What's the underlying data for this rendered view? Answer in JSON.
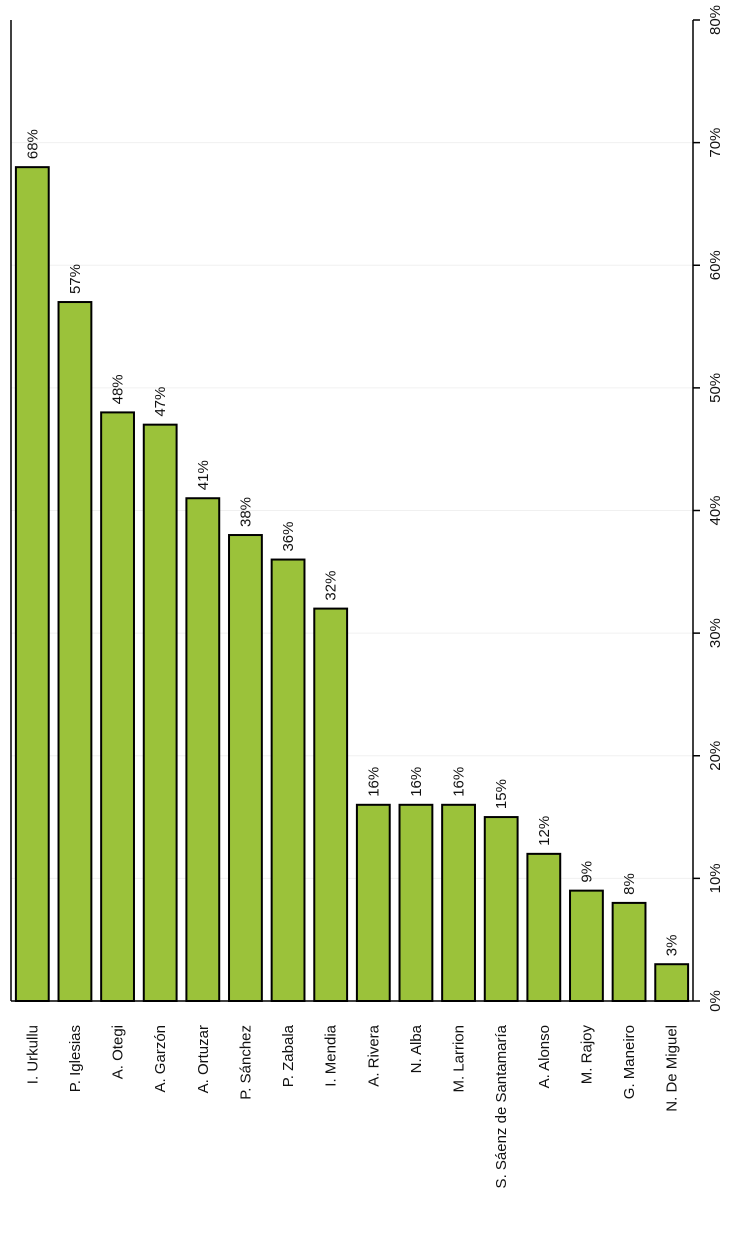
{
  "chart_data": {
    "type": "bar",
    "orientation": "rotated",
    "categories": [
      "I. Urkullu",
      "P. Iglesias",
      "A. Otegi",
      "A. Garzón",
      "A. Ortuzar",
      "P. Sánchez",
      "P. Zabala",
      "I. Mendia",
      "A. Rivera",
      "N. Alba",
      "M. Larrion",
      "S. Sáenz de Santamaría",
      "A. Alonso",
      "M. Rajoy",
      "G. Maneiro",
      "N. De Miguel"
    ],
    "values": [
      68,
      57,
      48,
      47,
      41,
      38,
      36,
      32,
      16,
      16,
      16,
      15,
      12,
      9,
      8,
      3
    ],
    "value_labels": [
      "68%",
      "57%",
      "48%",
      "47%",
      "41%",
      "38%",
      "36%",
      "32%",
      "16%",
      "16%",
      "16%",
      "15%",
      "12%",
      "9%",
      "8%",
      "3%"
    ],
    "ylim": [
      0,
      80
    ],
    "tick_values": [
      0,
      10,
      20,
      30,
      40,
      50,
      60,
      70,
      80
    ],
    "tick_labels": [
      "0%",
      "10%",
      "20%",
      "30%",
      "40%",
      "50%",
      "60%",
      "70%",
      "80%"
    ],
    "bar_color": "#9bc23a",
    "grid": true,
    "title": "",
    "xlabel": "",
    "ylabel": ""
  }
}
